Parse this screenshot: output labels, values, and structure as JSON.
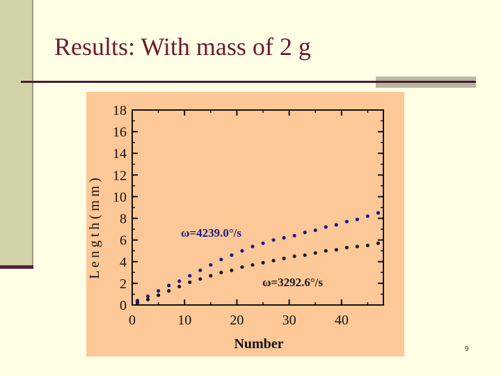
{
  "slide": {
    "title": "Results: With mass of 2 g",
    "page_number": "9"
  },
  "colors": {
    "background": "#ffffe6",
    "chart_background": "#fdc897",
    "series_blue": "#1a1a8c",
    "series_black": "#1a1a1a",
    "title": "#6b1a2e"
  },
  "chart_data": {
    "type": "scatter",
    "xlabel": "Number",
    "ylabel": "L e n g t h ( m m )",
    "xlim": [
      0,
      48
    ],
    "ylim": [
      0,
      18
    ],
    "xticks": [
      0,
      10,
      20,
      30,
      40
    ],
    "yticks": [
      0,
      2,
      4,
      6,
      8,
      10,
      12,
      14,
      16,
      18
    ],
    "grid": false,
    "series": [
      {
        "name": "ω=4239.0°/s",
        "color": "#1a1a8c",
        "x": [
          1,
          3,
          5,
          7,
          9,
          11,
          13,
          15,
          17,
          19,
          21,
          23,
          25,
          27,
          29,
          31,
          33,
          35,
          37,
          39,
          41,
          43,
          45,
          47
        ],
        "y": [
          0.4,
          0.8,
          1.3,
          1.8,
          2.2,
          2.7,
          3.2,
          3.7,
          4.2,
          4.6,
          5.0,
          5.4,
          5.7,
          6.0,
          6.2,
          6.4,
          6.7,
          6.9,
          7.2,
          7.4,
          7.7,
          7.9,
          8.2,
          8.5
        ]
      },
      {
        "name": "ω=3292.6°/s",
        "color": "#1a1a1a",
        "x": [
          1,
          3,
          5,
          7,
          9,
          11,
          13,
          15,
          17,
          19,
          21,
          23,
          25,
          27,
          29,
          31,
          33,
          35,
          37,
          39,
          41,
          43,
          45,
          47
        ],
        "y": [
          0.2,
          0.5,
          0.9,
          1.3,
          1.7,
          2.1,
          2.4,
          2.7,
          3.0,
          3.2,
          3.5,
          3.7,
          3.9,
          4.1,
          4.3,
          4.5,
          4.6,
          4.8,
          5.0,
          5.1,
          5.3,
          5.4,
          5.5,
          5.7
        ]
      }
    ]
  }
}
